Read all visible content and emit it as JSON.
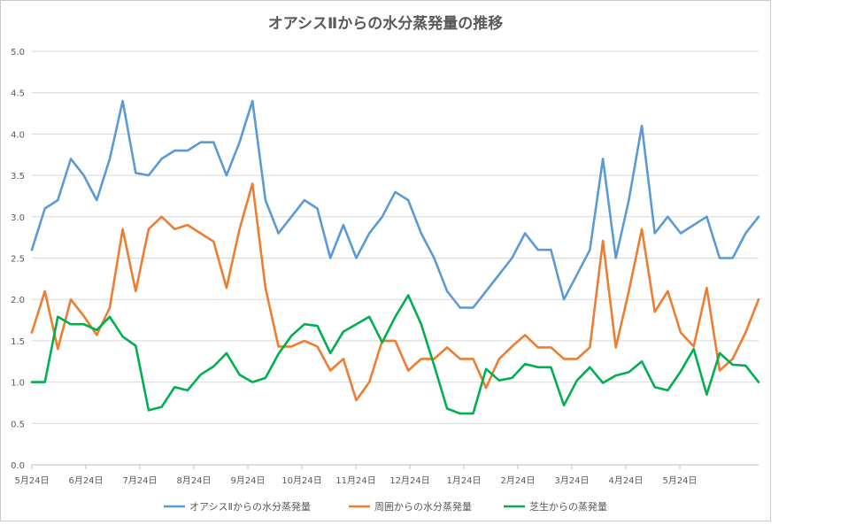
{
  "chart_data": {
    "type": "line",
    "title": "オアシスⅡからの水分蒸発量の推移",
    "xlabel": "",
    "ylabel": "",
    "ylim": [
      0,
      5
    ],
    "yticks": [
      "0.0",
      "0.5",
      "1.0",
      "1.5",
      "2.0",
      "2.5",
      "3.0",
      "3.5",
      "4.0",
      "4.5",
      "5.0"
    ],
    "xticks": [
      "5月24日",
      "6月24日",
      "7月24日",
      "8月24日",
      "9月24日",
      "10月24日",
      "11月24日",
      "12月24日",
      "1月24日",
      "2月24日",
      "3月24日",
      "4月24日",
      "5月24日"
    ],
    "grid": true,
    "legend_position": "bottom",
    "series": [
      {
        "name": "オアシスⅡからの水分蒸発量",
        "color": "#5b9bd5",
        "values": [
          2.6,
          3.1,
          3.2,
          3.7,
          3.5,
          3.2,
          3.7,
          4.4,
          3.53,
          3.5,
          3.7,
          3.8,
          3.8,
          3.9,
          3.9,
          3.5,
          3.9,
          4.4,
          3.2,
          2.8,
          3.0,
          3.2,
          3.1,
          2.5,
          2.9,
          2.5,
          2.8,
          3.0,
          3.3,
          3.2,
          2.8,
          2.5,
          2.1,
          1.9,
          1.9,
          2.1,
          2.3,
          2.5,
          2.8,
          2.6,
          2.6,
          2.0,
          2.3,
          2.6,
          3.7,
          2.5,
          3.2,
          4.1,
          2.8,
          3.0,
          2.8,
          2.9,
          3.0,
          2.5,
          2.5,
          2.8,
          3.0
        ]
      },
      {
        "name": "周囲からの水分蒸発量",
        "color": "#ed7d31",
        "values": [
          1.6,
          2.1,
          1.4,
          2.0,
          1.8,
          1.57,
          1.9,
          2.85,
          2.1,
          2.85,
          3.0,
          2.85,
          2.9,
          2.8,
          2.7,
          2.14,
          2.85,
          3.4,
          2.14,
          1.43,
          1.43,
          1.5,
          1.43,
          1.14,
          1.28,
          0.78,
          1.0,
          1.5,
          1.5,
          1.14,
          1.28,
          1.28,
          1.42,
          1.28,
          1.28,
          0.93,
          1.28,
          1.43,
          1.57,
          1.42,
          1.42,
          1.28,
          1.28,
          1.42,
          2.71,
          1.42,
          2.1,
          2.85,
          1.85,
          2.1,
          1.6,
          1.43,
          2.14,
          1.14,
          1.28,
          1.6,
          2.0
        ]
      },
      {
        "name": "芝生からの蒸発量",
        "color": "#00b050",
        "values": [
          1.0,
          1.0,
          1.79,
          1.7,
          1.7,
          1.63,
          1.79,
          1.55,
          1.44,
          0.66,
          0.7,
          0.94,
          0.9,
          1.09,
          1.19,
          1.35,
          1.09,
          1.0,
          1.05,
          1.34,
          1.56,
          1.7,
          1.68,
          1.35,
          1.61,
          1.7,
          1.79,
          1.48,
          1.79,
          2.05,
          1.7,
          1.2,
          0.68,
          0.62,
          0.62,
          1.16,
          1.02,
          1.05,
          1.22,
          1.18,
          1.18,
          0.72,
          1.02,
          1.18,
          0.99,
          1.08,
          1.12,
          1.25,
          0.94,
          0.9,
          1.13,
          1.4,
          0.85,
          1.35,
          1.21,
          1.2,
          1.0
        ]
      }
    ]
  }
}
